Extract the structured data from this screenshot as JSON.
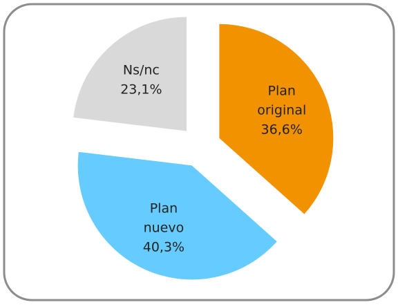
{
  "chart_data": {
    "type": "pie",
    "categories": [
      "Plan original",
      "Plan nuevo",
      "Ns/nc"
    ],
    "values": [
      36.6,
      40.3,
      23.1
    ],
    "value_labels": [
      "36,6%",
      "40,3%",
      "23,1%"
    ],
    "colors": [
      "#f39200",
      "#66ccff",
      "#d9d9d9"
    ]
  }
}
